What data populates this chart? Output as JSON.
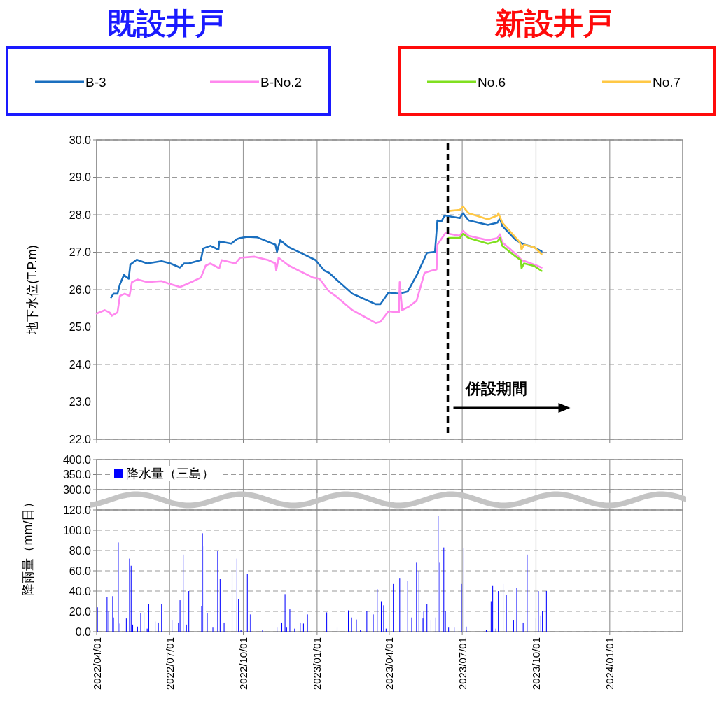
{
  "chart_data": [
    {
      "type": "line",
      "ylabel": "地下水位(T.P.m)",
      "xlim": [
        "2022-04-01",
        "2024-04-01"
      ],
      "xticks": [
        {
          "value": "2022-04-01",
          "label": null
        },
        {
          "value": "2022-07-01",
          "label": null
        },
        {
          "value": "2022-10-01",
          "label": null
        },
        {
          "value": "2023-01-01",
          "label": null
        },
        {
          "value": "2023-04-01",
          "label": null
        },
        {
          "value": "2023-07-01",
          "label": null
        },
        {
          "value": "2023-10-01",
          "label": null
        },
        {
          "value": "2024-01-01",
          "label": null
        }
      ],
      "ylim": [
        22,
        30
      ],
      "yticks": [
        {
          "value": 22,
          "label": "22.0"
        },
        {
          "value": 23,
          "label": "23.0"
        },
        {
          "value": 24,
          "label": "24.0"
        },
        {
          "value": 25,
          "label": "25.0"
        },
        {
          "value": 26,
          "label": "26.0"
        },
        {
          "value": 27,
          "label": "27.0"
        },
        {
          "value": 28,
          "label": "28.0"
        },
        {
          "value": 29,
          "label": "29.0"
        },
        {
          "value": 30,
          "label": "30.0"
        }
      ],
      "tick_labels": "y",
      "grid": true,
      "legend": "top",
      "line_style": "solid",
      "annotations": [
        "既設井戸",
        "新設井戸",
        "併設期間"
      ],
      "ref_lines": [
        {
          "axis": "x",
          "value": "2023-06-13",
          "color": "#000000",
          "line_style": "dashed"
        }
      ],
      "series": [
        {
          "name": "B-3",
          "color": "#1a6fbf",
          "x": [
            "2022-04-19",
            "2022-04-22",
            "2022-04-27",
            "2022-04-30",
            "2022-05-05",
            "2022-05-11",
            "2022-05-13",
            "2022-05-21",
            "2022-06-03",
            "2022-06-21",
            "2022-07-02",
            "2022-07-14",
            "2022-07-19",
            "2022-07-25",
            "2022-08-09",
            "2022-08-12",
            "2022-08-21",
            "2022-08-31",
            "2022-09-01",
            "2022-09-16",
            "2022-09-23",
            "2022-09-27",
            "2022-10-06",
            "2022-10-18",
            "2022-11-10",
            "2022-11-12",
            "2022-11-16",
            "2022-11-27",
            "2022-12-12",
            "2022-12-30",
            "2023-01-10",
            "2023-01-16",
            "2023-01-24",
            "2023-02-14",
            "2023-03-15",
            "2023-03-21",
            "2023-03-31",
            "2023-04-13",
            "2023-04-24",
            "2023-05-06",
            "2023-05-18",
            "2023-05-28",
            "2023-05-31",
            "2023-06-05",
            "2023-06-09",
            "2023-06-28",
            "2023-07-02",
            "2023-07-09",
            "2023-08-02",
            "2023-08-14",
            "2023-08-17",
            "2023-08-20",
            "2023-09-06",
            "2023-09-17",
            "2023-09-29",
            "2023-10-08"
          ],
          "values": [
            25.79,
            25.89,
            25.89,
            26.14,
            26.39,
            26.29,
            26.67,
            26.8,
            26.7,
            26.76,
            26.7,
            26.59,
            26.7,
            26.7,
            26.79,
            27.1,
            27.17,
            27.07,
            27.29,
            27.23,
            27.35,
            27.38,
            27.41,
            27.4,
            27.2,
            27.01,
            27.32,
            27.13,
            26.98,
            26.79,
            26.51,
            26.45,
            26.29,
            25.89,
            25.61,
            25.61,
            25.92,
            25.89,
            25.95,
            26.42,
            26.98,
            27.01,
            27.85,
            27.82,
            27.98,
            27.91,
            28.04,
            27.85,
            27.73,
            27.79,
            27.91,
            27.7,
            27.32,
            27.2,
            27.13,
            27.02
          ]
        },
        {
          "name": "B-No.2",
          "color": "#ff88ee",
          "x": [
            "2022-04-01",
            "2022-04-11",
            "2022-04-17",
            "2022-04-20",
            "2022-04-27",
            "2022-04-30",
            "2022-05-06",
            "2022-05-12",
            "2022-05-15",
            "2022-05-22",
            "2022-06-03",
            "2022-06-21",
            "2022-06-29",
            "2022-07-14",
            "2022-07-31",
            "2022-08-09",
            "2022-08-15",
            "2022-08-21",
            "2022-09-01",
            "2022-09-04",
            "2022-09-21",
            "2022-09-27",
            "2022-10-15",
            "2022-11-01",
            "2022-11-10",
            "2022-11-11",
            "2022-11-14",
            "2022-11-27",
            "2022-12-27",
            "2023-01-04",
            "2023-01-16",
            "2023-01-24",
            "2023-02-14",
            "2023-03-15",
            "2023-03-21",
            "2023-03-31",
            "2023-04-13",
            "2023-04-14",
            "2023-04-17",
            "2023-04-26",
            "2023-05-05",
            "2023-05-15",
            "2023-05-24",
            "2023-05-30",
            "2023-05-31",
            "2023-06-10",
            "2023-06-28",
            "2023-07-02",
            "2023-07-09",
            "2023-08-02",
            "2023-08-14",
            "2023-08-17",
            "2023-08-20",
            "2023-09-06",
            "2023-09-13",
            "2023-09-17",
            "2023-09-29",
            "2023-10-08"
          ],
          "values": [
            25.36,
            25.45,
            25.39,
            25.3,
            25.39,
            25.83,
            25.89,
            25.83,
            26.2,
            26.27,
            26.2,
            26.23,
            26.17,
            26.07,
            26.23,
            26.32,
            26.64,
            26.7,
            26.57,
            26.79,
            26.7,
            26.85,
            26.88,
            26.79,
            26.7,
            26.51,
            26.85,
            26.64,
            26.32,
            26.29,
            25.95,
            25.83,
            25.45,
            25.11,
            25.14,
            25.42,
            25.39,
            26.2,
            25.45,
            25.55,
            25.7,
            26.45,
            26.51,
            26.54,
            27.2,
            27.51,
            27.44,
            27.57,
            27.44,
            27.32,
            27.38,
            27.48,
            27.26,
            26.95,
            26.79,
            26.76,
            26.67,
            26.59
          ]
        },
        {
          "name": "No.6",
          "color": "#80e020",
          "x": [
            "2023-06-14",
            "2023-06-28",
            "2023-07-02",
            "2023-07-09",
            "2023-08-02",
            "2023-08-14",
            "2023-08-17",
            "2023-08-20",
            "2023-09-06",
            "2023-09-12",
            "2023-09-13",
            "2023-09-16",
            "2023-09-29",
            "2023-10-08"
          ],
          "values": [
            27.38,
            27.38,
            27.49,
            27.38,
            27.23,
            27.29,
            27.38,
            27.17,
            26.88,
            26.79,
            26.57,
            26.7,
            26.63,
            26.5
          ]
        },
        {
          "name": "No.7",
          "color": "#ffc845",
          "x": [
            "2023-06-14",
            "2023-06-28",
            "2023-07-02",
            "2023-07-09",
            "2023-08-02",
            "2023-08-14",
            "2023-08-15",
            "2023-08-20",
            "2023-09-06",
            "2023-09-11",
            "2023-09-13",
            "2023-09-16",
            "2023-09-29",
            "2023-10-08"
          ],
          "values": [
            28.1,
            28.13,
            28.22,
            28.04,
            27.88,
            27.98,
            28.04,
            27.79,
            27.38,
            27.26,
            27.07,
            27.2,
            27.13,
            26.95
          ]
        }
      ]
    },
    {
      "type": "bar",
      "ylim": [
        300,
        400
      ],
      "yticks": [
        {
          "value": 300,
          "label": "300.0"
        },
        {
          "value": 350,
          "label": "350.0"
        },
        {
          "value": 400,
          "label": "400.0"
        }
      ],
      "tick_labels": "y",
      "grid": true,
      "legend": "top left",
      "series": [
        {
          "name": "降水量（三島）",
          "color": "#0000ff"
        }
      ]
    },
    {
      "type": "bar",
      "ylabel": "降雨量（mm/日）",
      "xlim": [
        "2022-04-01",
        "2024-04-01"
      ],
      "xticks": [
        {
          "value": "2022-04-01",
          "label": "2022/04/01"
        },
        {
          "value": "2022-07-01",
          "label": "2022/07/01"
        },
        {
          "value": "2022-10-01",
          "label": "2022/10/01"
        },
        {
          "value": "2023-01-01",
          "label": "2023/01/01"
        },
        {
          "value": "2023-04-01",
          "label": "2023/04/01"
        },
        {
          "value": "2023-07-01",
          "label": "2023/07/01"
        },
        {
          "value": "2023-10-01",
          "label": "2023/10/01"
        },
        {
          "value": "2024-01-01",
          "label": "2024/01/01"
        }
      ],
      "ylim": [
        0,
        120
      ],
      "yticks": [
        {
          "value": 0,
          "label": "0.0"
        },
        {
          "value": 20,
          "label": "20.0"
        },
        {
          "value": 40,
          "label": "40.0"
        },
        {
          "value": 60,
          "label": "60.0"
        },
        {
          "value": 80,
          "label": "80.0"
        },
        {
          "value": 100,
          "label": "100.0"
        },
        {
          "value": 120,
          "label": "120.0"
        }
      ],
      "grid": true,
      "x": [
        "2022-04-02",
        "2022-04-14",
        "2022-04-16",
        "2022-04-21",
        "2022-04-22",
        "2022-04-28",
        "2022-04-30",
        "2022-05-08",
        "2022-05-12",
        "2022-05-14",
        "2022-05-16",
        "2022-05-22",
        "2022-05-26",
        "2022-05-30",
        "2022-06-03",
        "2022-06-05",
        "2022-06-13",
        "2022-06-17",
        "2022-06-21",
        "2022-07-04",
        "2022-07-12",
        "2022-07-14",
        "2022-07-18",
        "2022-07-22",
        "2022-07-25",
        "2022-08-10",
        "2022-08-11",
        "2022-08-13",
        "2022-08-17",
        "2022-08-24",
        "2022-08-30",
        "2022-09-02",
        "2022-09-07",
        "2022-09-17",
        "2022-09-23",
        "2022-09-25",
        "2022-09-28",
        "2022-10-06",
        "2022-10-08",
        "2022-10-10",
        "2022-10-25",
        "2022-11-12",
        "2022-11-18",
        "2022-11-22",
        "2022-11-24",
        "2022-11-28",
        "2022-12-04",
        "2022-12-11",
        "2022-12-15",
        "2022-12-20",
        "2023-01-13",
        "2023-01-26",
        "2023-02-09",
        "2023-02-13",
        "2023-02-19",
        "2023-02-24",
        "2023-03-04",
        "2023-03-12",
        "2023-03-17",
        "2023-03-22",
        "2023-03-25",
        "2023-03-28",
        "2023-04-06",
        "2023-04-14",
        "2023-04-24",
        "2023-04-29",
        "2023-05-05",
        "2023-05-08",
        "2023-05-13",
        "2023-05-14",
        "2023-05-18",
        "2023-05-23",
        "2023-05-29",
        "2023-06-01",
        "2023-06-03",
        "2023-06-08",
        "2023-06-10",
        "2023-06-14",
        "2023-06-21",
        "2023-06-30",
        "2023-07-03",
        "2023-07-06",
        "2023-07-31",
        "2023-08-06",
        "2023-08-08",
        "2023-08-12",
        "2023-08-15",
        "2023-08-21",
        "2023-08-25",
        "2023-09-03",
        "2023-09-07",
        "2023-09-15",
        "2023-09-20",
        "2023-10-01",
        "2023-10-04",
        "2023-10-07",
        "2023-10-09",
        "2023-10-14"
      ],
      "series": [
        {
          "color": "#0000ff",
          "values": [
            24,
            34,
            20,
            35,
            14,
            88,
            8,
            13,
            72,
            65,
            7,
            5,
            18,
            19,
            3,
            27,
            10,
            9,
            27,
            11,
            9,
            31,
            76,
            7,
            40,
            25,
            97,
            84,
            18,
            4,
            80,
            52,
            9,
            60,
            72,
            32,
            2,
            57,
            17,
            17,
            2,
            4,
            9,
            37,
            4,
            22,
            3,
            9,
            8,
            17,
            19,
            4,
            21,
            14,
            12,
            2,
            20,
            17,
            42,
            30,
            26,
            3,
            47,
            53,
            50,
            14,
            68,
            60,
            13,
            20,
            27,
            11,
            14,
            114,
            68,
            83,
            20,
            4,
            4,
            47,
            82,
            5,
            2,
            30,
            45,
            3,
            40,
            47,
            36,
            11,
            43,
            9,
            76,
            13,
            40,
            16,
            20,
            40
          ]
        }
      ]
    }
  ]
}
